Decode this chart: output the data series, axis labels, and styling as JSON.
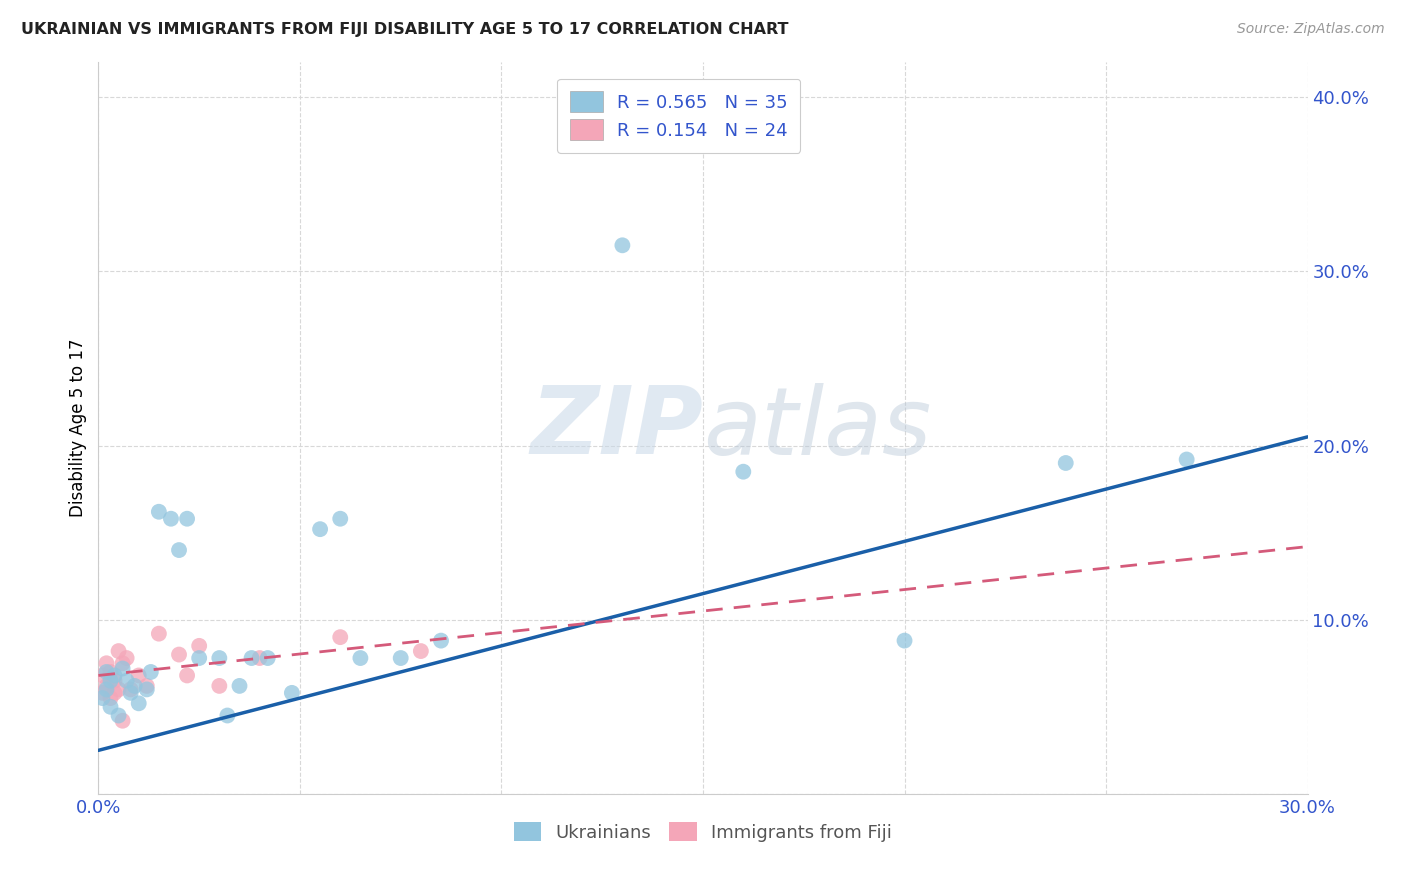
{
  "title": "UKRAINIAN VS IMMIGRANTS FROM FIJI DISABILITY AGE 5 TO 17 CORRELATION CHART",
  "source": "Source: ZipAtlas.com",
  "ylabel": "Disability Age 5 to 17",
  "xlim": [
    0.0,
    0.3
  ],
  "ylim": [
    0.0,
    0.42
  ],
  "xticks": [
    0.0,
    0.05,
    0.1,
    0.15,
    0.2,
    0.25,
    0.3
  ],
  "xtick_labels": [
    "0.0%",
    "",
    "",
    "",
    "",
    "",
    "30.0%"
  ],
  "ytick_labels": [
    "",
    "10.0%",
    "20.0%",
    "30.0%",
    "40.0%"
  ],
  "yticks": [
    0.0,
    0.1,
    0.2,
    0.3,
    0.4
  ],
  "watermark_zip": "ZIP",
  "watermark_atlas": "atlas",
  "legend_r1": "R = 0.565",
  "legend_n1": "N = 35",
  "legend_r2": "R = 0.154",
  "legend_n2": "N = 24",
  "blue_color": "#92c5de",
  "pink_color": "#f4a6b8",
  "line_blue": "#1a5fa8",
  "line_pink": "#d45a7a",
  "blue_line_start_y": 0.025,
  "blue_line_end_y": 0.205,
  "pink_line_start_y": 0.068,
  "pink_line_end_y": 0.142,
  "ukrainians_x": [
    0.001,
    0.002,
    0.002,
    0.003,
    0.003,
    0.004,
    0.005,
    0.006,
    0.007,
    0.008,
    0.009,
    0.01,
    0.012,
    0.013,
    0.015,
    0.018,
    0.02,
    0.022,
    0.025,
    0.03,
    0.032,
    0.035,
    0.038,
    0.042,
    0.048,
    0.055,
    0.06,
    0.065,
    0.075,
    0.085,
    0.13,
    0.16,
    0.2,
    0.24,
    0.27
  ],
  "ukrainians_y": [
    0.055,
    0.06,
    0.07,
    0.065,
    0.05,
    0.068,
    0.045,
    0.072,
    0.065,
    0.058,
    0.062,
    0.052,
    0.06,
    0.07,
    0.162,
    0.158,
    0.14,
    0.158,
    0.078,
    0.078,
    0.045,
    0.062,
    0.078,
    0.078,
    0.058,
    0.152,
    0.158,
    0.078,
    0.078,
    0.088,
    0.315,
    0.185,
    0.088,
    0.19,
    0.192
  ],
  "fiji_x": [
    0.001,
    0.001,
    0.002,
    0.002,
    0.003,
    0.003,
    0.004,
    0.004,
    0.005,
    0.005,
    0.006,
    0.006,
    0.007,
    0.008,
    0.01,
    0.012,
    0.015,
    0.02,
    0.022,
    0.025,
    0.03,
    0.04,
    0.06,
    0.08
  ],
  "fiji_y": [
    0.058,
    0.068,
    0.062,
    0.075,
    0.055,
    0.07,
    0.065,
    0.058,
    0.082,
    0.06,
    0.075,
    0.042,
    0.078,
    0.06,
    0.068,
    0.062,
    0.092,
    0.08,
    0.068,
    0.085,
    0.062,
    0.078,
    0.09,
    0.082
  ],
  "title_color": "#222222",
  "tick_color": "#3355cc",
  "source_color": "#999999",
  "grid_color": "#d8d8d8",
  "label_color": "#555555"
}
